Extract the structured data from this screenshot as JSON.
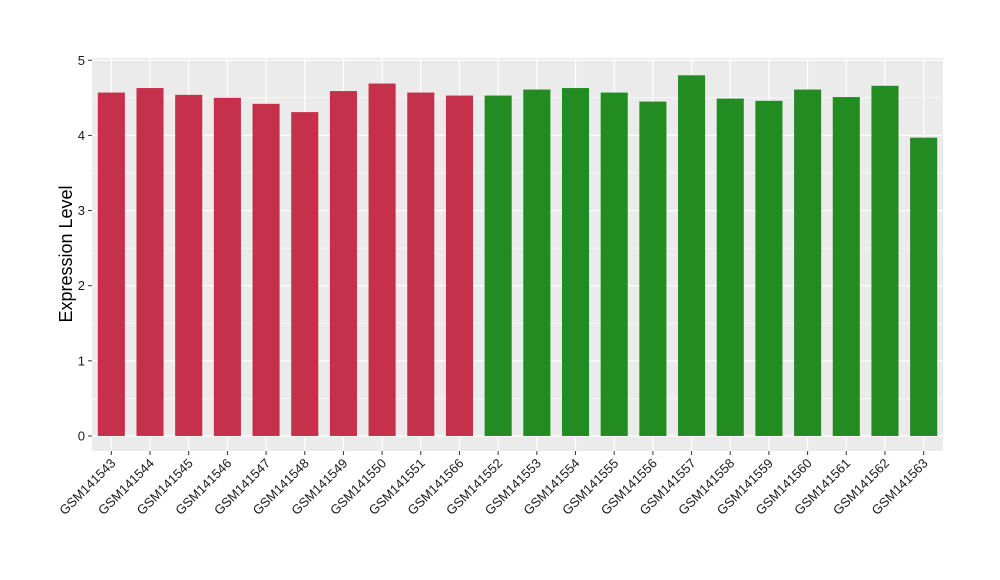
{
  "chart_data": {
    "type": "bar",
    "title": "",
    "xlabel": "",
    "ylabel": "Expression Level",
    "ylim": [
      -0.2,
      5.03
    ],
    "yticks": [
      0,
      1,
      2,
      3,
      4,
      5
    ],
    "grid": true,
    "legend": "none",
    "colors": {
      "group1": "#c5314a",
      "group2": "#228b22",
      "panel": "#ebebeb",
      "grid": "#ffffff"
    },
    "categories": [
      "GSM141543",
      "GSM141544",
      "GSM141545",
      "GSM141546",
      "GSM141547",
      "GSM141548",
      "GSM141549",
      "GSM141550",
      "GSM141551",
      "GSM141566",
      "GSM141552",
      "GSM141553",
      "GSM141554",
      "GSM141555",
      "GSM141556",
      "GSM141557",
      "GSM141558",
      "GSM141559",
      "GSM141560",
      "GSM141561",
      "GSM141562",
      "GSM141563"
    ],
    "values": [
      4.57,
      4.63,
      4.54,
      4.5,
      4.42,
      4.31,
      4.59,
      4.69,
      4.57,
      4.53,
      4.53,
      4.61,
      4.63,
      4.57,
      4.45,
      4.8,
      4.49,
      4.46,
      4.61,
      4.51,
      4.66,
      3.97
    ],
    "groups": [
      "group1",
      "group1",
      "group1",
      "group1",
      "group1",
      "group1",
      "group1",
      "group1",
      "group1",
      "group1",
      "group2",
      "group2",
      "group2",
      "group2",
      "group2",
      "group2",
      "group2",
      "group2",
      "group2",
      "group2",
      "group2",
      "group2"
    ]
  }
}
